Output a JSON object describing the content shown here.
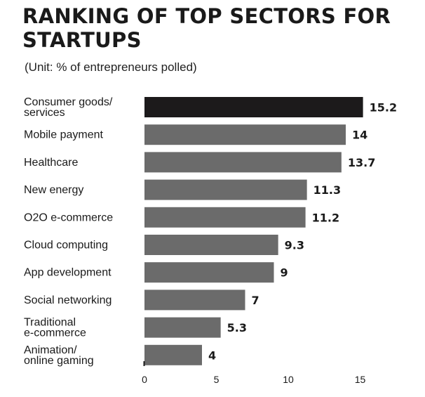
{
  "chart_data": {
    "type": "bar",
    "orientation": "horizontal",
    "title": "RANKING OF TOP SECTORS FOR STARTUPS",
    "subtitle": "(Unit: % of entrepreneurs polled)",
    "categories": [
      "Consumer goods/ services",
      "Mobile payment",
      "Healthcare",
      "New energy",
      "O2O e-commerce",
      "Cloud computing",
      "App development",
      "Social networking",
      "Traditional e-commerce",
      "Animation/ online gaming"
    ],
    "category_lines": [
      [
        "Consumer goods/",
        "services"
      ],
      [
        "Mobile payment"
      ],
      [
        "Healthcare"
      ],
      [
        "New energy"
      ],
      [
        "O2O e-commerce"
      ],
      [
        "Cloud computing"
      ],
      [
        "App development"
      ],
      [
        "Social networking"
      ],
      [
        "Traditional",
        "e-commerce"
      ],
      [
        "Animation/",
        "online gaming"
      ]
    ],
    "values": [
      15.2,
      14,
      13.7,
      11.3,
      11.2,
      9.3,
      9,
      7,
      5.3,
      4
    ],
    "value_labels": [
      "15.2",
      "14",
      "13.7",
      "11.3",
      "11.2",
      "9.3",
      "9",
      "7",
      "5.3",
      "4"
    ],
    "xticks": [
      0,
      5,
      10,
      15
    ],
    "xtick_labels": [
      "0",
      "5",
      "10",
      "15"
    ],
    "xlim": [
      0,
      15
    ],
    "grid": false,
    "legend": "none",
    "colors": {
      "highlight": "#1c1a1b",
      "bar": "#6b6b6b",
      "text": "#1a1a1a"
    },
    "highlight_index": 0
  }
}
